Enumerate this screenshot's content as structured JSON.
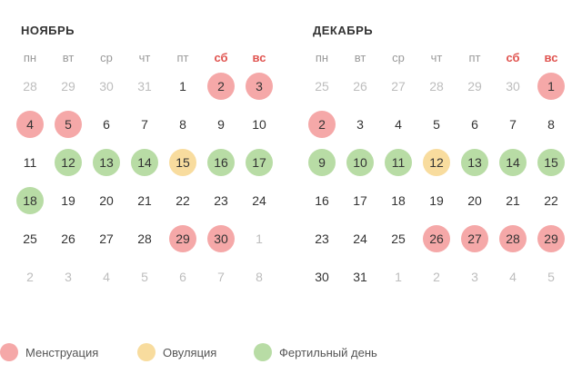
{
  "colors": {
    "menstruation": "#f5a8a8",
    "ovulation": "#f8dc9e",
    "fertile": "#b8dca5",
    "weekend": "#e0534f"
  },
  "weekdays": [
    "пн",
    "вт",
    "ср",
    "чт",
    "пт",
    "сб",
    "вс"
  ],
  "months": [
    {
      "title": "НОЯБРЬ",
      "weeks": [
        [
          {
            "d": "28",
            "o": true
          },
          {
            "d": "29",
            "o": true
          },
          {
            "d": "30",
            "o": true
          },
          {
            "d": "31",
            "o": true
          },
          {
            "d": "1"
          },
          {
            "d": "2",
            "t": "m"
          },
          {
            "d": "3",
            "t": "m"
          }
        ],
        [
          {
            "d": "4",
            "t": "m"
          },
          {
            "d": "5",
            "t": "m"
          },
          {
            "d": "6"
          },
          {
            "d": "7"
          },
          {
            "d": "8"
          },
          {
            "d": "9"
          },
          {
            "d": "10"
          }
        ],
        [
          {
            "d": "11"
          },
          {
            "d": "12",
            "t": "f"
          },
          {
            "d": "13",
            "t": "f"
          },
          {
            "d": "14",
            "t": "f"
          },
          {
            "d": "15",
            "t": "o"
          },
          {
            "d": "16",
            "t": "f"
          },
          {
            "d": "17",
            "t": "f"
          }
        ],
        [
          {
            "d": "18",
            "t": "f"
          },
          {
            "d": "19"
          },
          {
            "d": "20"
          },
          {
            "d": "21"
          },
          {
            "d": "22"
          },
          {
            "d": "23"
          },
          {
            "d": "24"
          }
        ],
        [
          {
            "d": "25"
          },
          {
            "d": "26"
          },
          {
            "d": "27"
          },
          {
            "d": "28"
          },
          {
            "d": "29",
            "t": "m"
          },
          {
            "d": "30",
            "t": "m"
          },
          {
            "d": "1",
            "o": true
          }
        ],
        [
          {
            "d": "2",
            "o": true
          },
          {
            "d": "3",
            "o": true
          },
          {
            "d": "4",
            "o": true
          },
          {
            "d": "5",
            "o": true
          },
          {
            "d": "6",
            "o": true
          },
          {
            "d": "7",
            "o": true
          },
          {
            "d": "8",
            "o": true
          }
        ]
      ]
    },
    {
      "title": "ДЕКАБРЬ",
      "weeks": [
        [
          {
            "d": "25",
            "o": true
          },
          {
            "d": "26",
            "o": true
          },
          {
            "d": "27",
            "o": true
          },
          {
            "d": "28",
            "o": true
          },
          {
            "d": "29",
            "o": true
          },
          {
            "d": "30",
            "o": true
          },
          {
            "d": "1",
            "t": "m"
          }
        ],
        [
          {
            "d": "2",
            "t": "m"
          },
          {
            "d": "3"
          },
          {
            "d": "4"
          },
          {
            "d": "5"
          },
          {
            "d": "6"
          },
          {
            "d": "7"
          },
          {
            "d": "8"
          }
        ],
        [
          {
            "d": "9",
            "t": "f"
          },
          {
            "d": "10",
            "t": "f"
          },
          {
            "d": "11",
            "t": "f"
          },
          {
            "d": "12",
            "t": "o"
          },
          {
            "d": "13",
            "t": "f"
          },
          {
            "d": "14",
            "t": "f"
          },
          {
            "d": "15",
            "t": "f"
          }
        ],
        [
          {
            "d": "16"
          },
          {
            "d": "17"
          },
          {
            "d": "18"
          },
          {
            "d": "19"
          },
          {
            "d": "20"
          },
          {
            "d": "21"
          },
          {
            "d": "22"
          }
        ],
        [
          {
            "d": "23"
          },
          {
            "d": "24"
          },
          {
            "d": "25"
          },
          {
            "d": "26",
            "t": "m"
          },
          {
            "d": "27",
            "t": "m"
          },
          {
            "d": "28",
            "t": "m"
          },
          {
            "d": "29",
            "t": "m"
          }
        ],
        [
          {
            "d": "30"
          },
          {
            "d": "31"
          },
          {
            "d": "1",
            "o": true
          },
          {
            "d": "2",
            "o": true
          },
          {
            "d": "3",
            "o": true
          },
          {
            "d": "4",
            "o": true
          },
          {
            "d": "5",
            "o": true
          }
        ]
      ]
    }
  ],
  "legend": {
    "menstruation": "Менструация",
    "ovulation": "Овуляция",
    "fertile": "Фертильный день"
  }
}
